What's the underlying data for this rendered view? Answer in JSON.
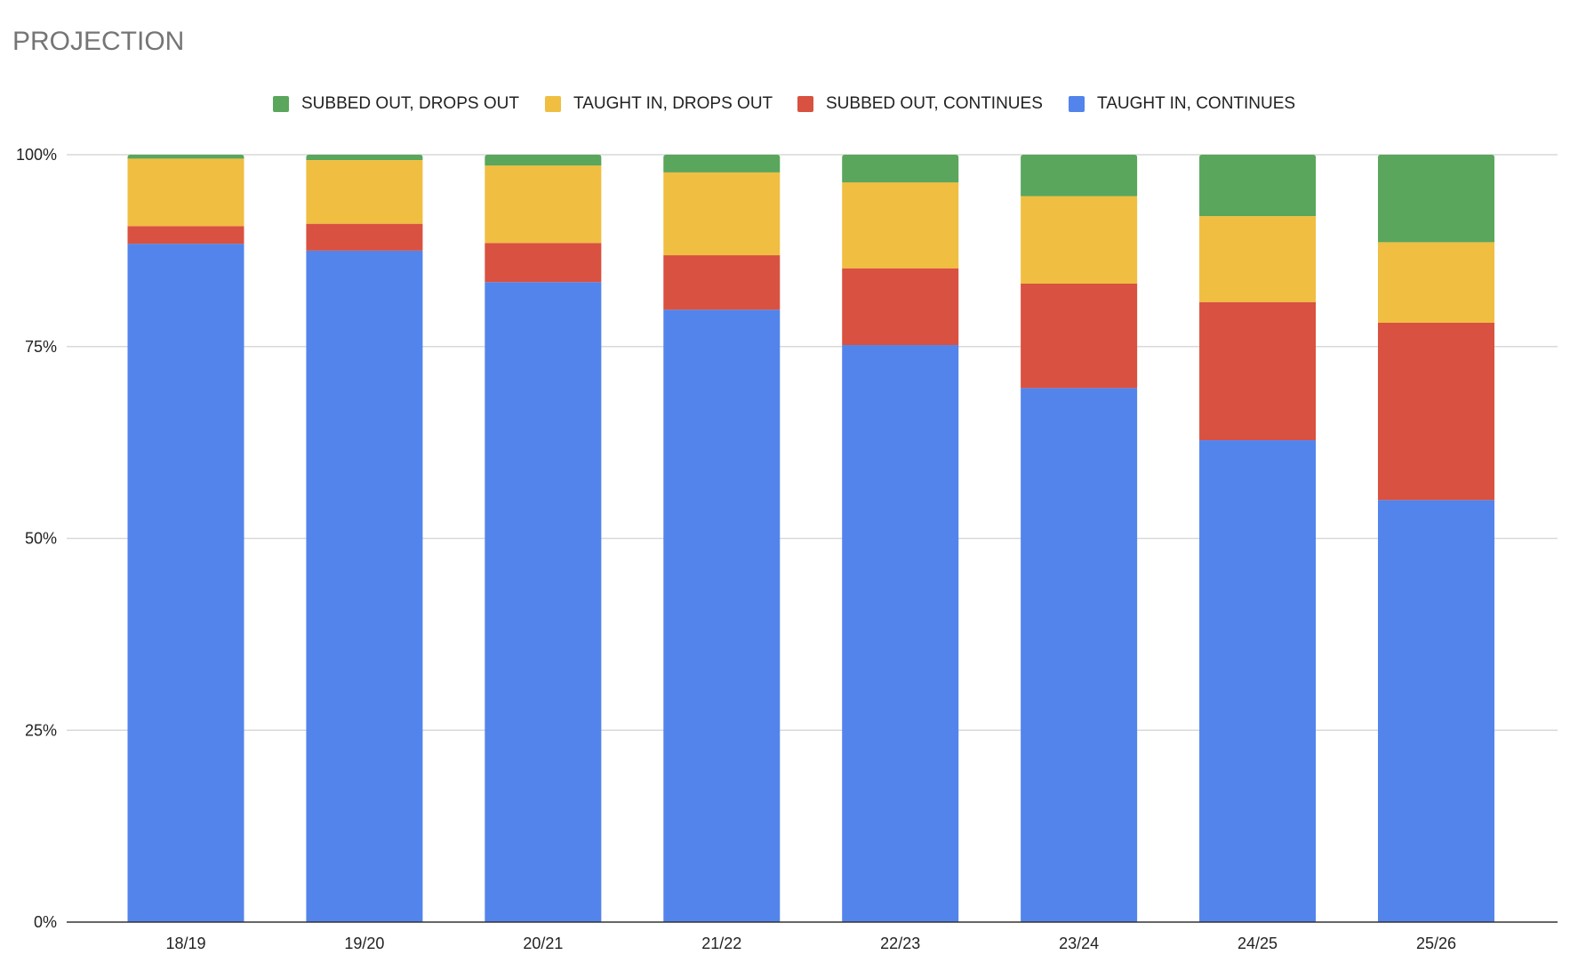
{
  "chart_data": {
    "type": "bar",
    "stacked": "percent",
    "title": "PROJECTION",
    "xlabel": "",
    "ylabel": "",
    "ylim": [
      0,
      100
    ],
    "yticks": [
      "0%",
      "25%",
      "50%",
      "75%",
      "100%"
    ],
    "ytick_values": [
      0,
      25,
      50,
      75,
      100
    ],
    "grid": true,
    "legend_position": "top",
    "categories": [
      "18/19",
      "19/20",
      "20/21",
      "21/22",
      "22/23",
      "23/24",
      "24/25",
      "25/26"
    ],
    "series": [
      {
        "name": "TAUGHT IN, CONTINUES",
        "color": "#5384eb",
        "values": [
          88.4,
          87.5,
          83.4,
          79.8,
          75.2,
          69.6,
          62.8,
          55.0
        ]
      },
      {
        "name": "SUBBED OUT, CONTINUES",
        "color": "#d95140",
        "values": [
          2.3,
          3.5,
          5.1,
          7.1,
          10.0,
          13.6,
          18.0,
          23.1
        ]
      },
      {
        "name": "TAUGHT IN, DROPS OUT",
        "color": "#f0be41",
        "values": [
          8.8,
          8.3,
          10.1,
          10.8,
          11.2,
          11.4,
          11.2,
          10.5
        ]
      },
      {
        "name": "SUBBED OUT, DROPS OUT",
        "color": "#59a65c",
        "values": [
          0.5,
          0.7,
          1.4,
          2.3,
          3.6,
          5.4,
          8.0,
          11.4
        ]
      }
    ],
    "legend_order": [
      "SUBBED OUT, DROPS OUT",
      "TAUGHT IN, DROPS OUT",
      "SUBBED OUT, CONTINUES",
      "TAUGHT IN, CONTINUES"
    ]
  }
}
